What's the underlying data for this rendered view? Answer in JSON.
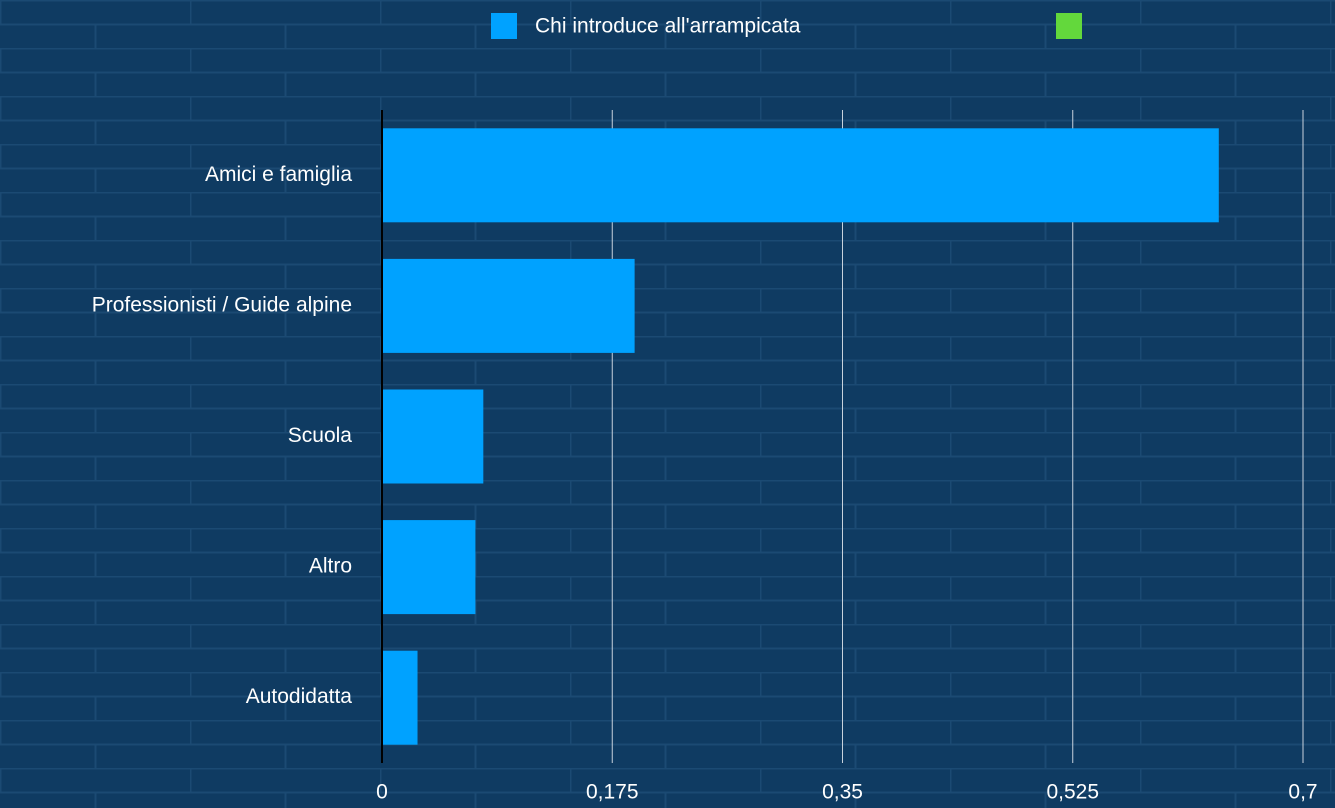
{
  "chart_data": {
    "type": "bar",
    "orientation": "horizontal",
    "categories": [
      "Amici e famiglia",
      "Professionisti / Guide alpine",
      "Scuola",
      "Altro",
      "Autodidatta"
    ],
    "series": [
      {
        "name": "Chi introduce all'arrampicata",
        "color": "#00a2ff",
        "values": [
          0.636,
          0.192,
          0.077,
          0.071,
          0.027
        ]
      },
      {
        "color": "#63d83c",
        "values": [
          null,
          null,
          null,
          null,
          null
        ]
      }
    ],
    "xlim": [
      0,
      0.7
    ],
    "xticks": [
      0,
      {
        "value": 0.175,
        "label": "0,175"
      },
      {
        "value": 0.35,
        "label": "0,35"
      },
      {
        "value": 0.525,
        "label": "0,525"
      },
      {
        "value": 0.7,
        "label": "0,7"
      }
    ],
    "grid": true,
    "legend": "top"
  }
}
